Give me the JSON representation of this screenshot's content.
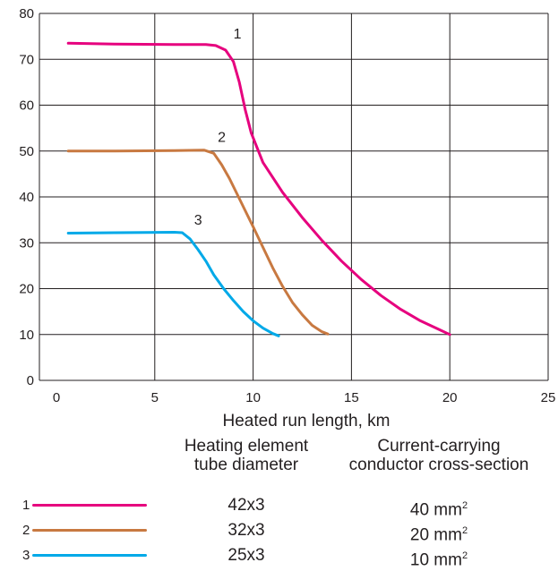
{
  "chart_data": {
    "type": "line",
    "xlabel": "Heated run length, km",
    "ylabel": "",
    "xlim": [
      0,
      25
    ],
    "ylim": [
      0,
      80
    ],
    "xticks": [
      0,
      5,
      10,
      15,
      20,
      25
    ],
    "yticks": [
      0,
      10,
      20,
      30,
      40,
      50,
      60,
      70,
      80
    ],
    "grid": true,
    "series": [
      {
        "name": "1",
        "color": "#e6007e",
        "x": [
          0.6,
          3.0,
          6.0,
          7.6,
          8.1,
          8.6,
          9.0,
          9.3,
          9.6,
          9.9,
          10.5,
          11.5,
          12.5,
          13.5,
          14.5,
          15.5,
          16.5,
          17.5,
          18.5,
          19.5,
          20.0
        ],
        "y": [
          73.5,
          73.3,
          73.2,
          73.2,
          73.0,
          72.0,
          69.5,
          65.0,
          59.0,
          54.0,
          47.5,
          41.0,
          35.5,
          30.5,
          26.0,
          22.0,
          18.5,
          15.5,
          13.0,
          11.0,
          10.0
        ]
      },
      {
        "name": "2",
        "color": "#c87941",
        "x": [
          0.6,
          3.0,
          6.0,
          7.5,
          8.0,
          8.4,
          8.8,
          9.2,
          9.6,
          10.0,
          10.5,
          11.0,
          11.5,
          12.0,
          12.5,
          13.0,
          13.5,
          13.8
        ],
        "y": [
          50.0,
          50.0,
          50.1,
          50.2,
          49.5,
          47.0,
          44.0,
          40.5,
          37.0,
          33.5,
          29.0,
          24.5,
          20.5,
          17.0,
          14.3,
          12.0,
          10.6,
          10.1
        ]
      },
      {
        "name": "3",
        "color": "#00a9e8",
        "x": [
          0.6,
          3.0,
          6.0,
          6.4,
          6.8,
          7.2,
          7.6,
          8.0,
          8.5,
          9.0,
          9.5,
          10.0,
          10.5,
          11.0,
          11.3
        ],
        "y": [
          32.1,
          32.2,
          32.3,
          32.2,
          30.8,
          28.5,
          26.0,
          23.0,
          20.0,
          17.4,
          15.0,
          13.0,
          11.4,
          10.2,
          9.7
        ]
      }
    ],
    "curve_labels": [
      {
        "text": "1",
        "x": 9.0,
        "y": 74.5
      },
      {
        "text": "2",
        "x": 8.2,
        "y": 52.0
      },
      {
        "text": "3",
        "x": 7.0,
        "y": 34.0
      }
    ]
  },
  "legend": {
    "tube_header": [
      "Heating element",
      "tube diameter"
    ],
    "conductor_header": [
      "Current-carrying",
      "conductor cross-section"
    ],
    "rows": [
      {
        "num": "1",
        "color": "#e6007e",
        "tube": "42x3",
        "conductor": "40 mm",
        "sup": "2"
      },
      {
        "num": "2",
        "color": "#c87941",
        "tube": "32x3",
        "conductor": "20 mm",
        "sup": "2"
      },
      {
        "num": "3",
        "color": "#00a9e8",
        "tube": "25x3",
        "conductor": "10 mm",
        "sup": "2"
      }
    ]
  }
}
